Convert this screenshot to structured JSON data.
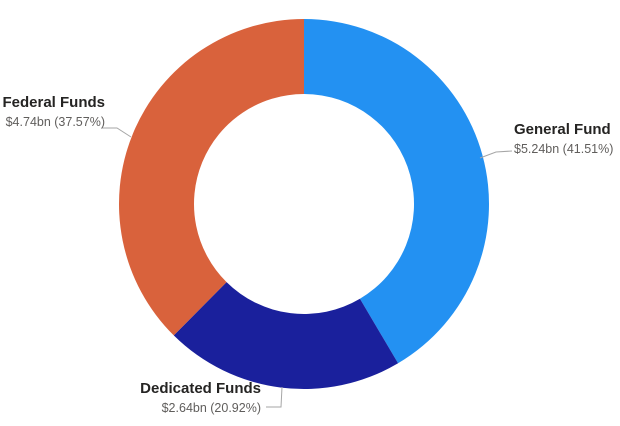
{
  "chart_data": {
    "type": "pie",
    "subtype": "donut",
    "title": "",
    "direction": "clockwise",
    "start_angle_deg": 0,
    "inner_radius_ratio": 0.595,
    "legend": "none (direct outside labels with leader lines)",
    "series": [
      {
        "name": "General Fund",
        "value": 5.24,
        "percent": 41.51,
        "value_label": "$5.24bn (41.51%)",
        "color": "#2391F2"
      },
      {
        "name": "Dedicated Funds",
        "value": 2.64,
        "percent": 20.92,
        "value_label": "$2.64bn (20.92%)",
        "color": "#1A209C"
      },
      {
        "name": "Federal Funds",
        "value": 4.74,
        "percent": 37.57,
        "value_label": "$4.74bn (37.57%)",
        "color": "#D9623C"
      }
    ],
    "colors": {
      "label_title": "#252423",
      "label_value": "#605E5C",
      "leader_line": "#A6A6A6",
      "background": "#FFFFFF"
    }
  }
}
